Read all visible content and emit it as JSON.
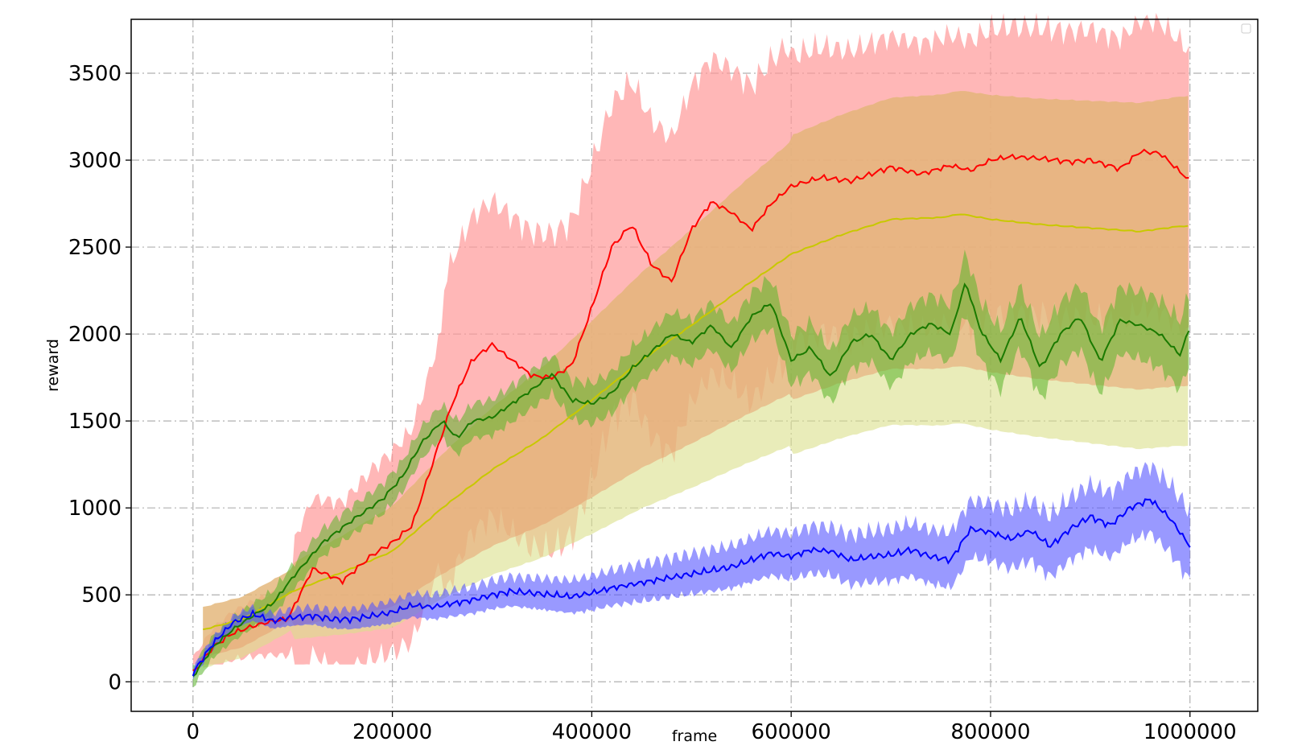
{
  "chart_data": {
    "type": "line",
    "xlabel": "frame",
    "ylabel": "reward",
    "xlim": [
      -62000,
      1068000
    ],
    "ylim": [
      -170,
      3810
    ],
    "xticks": [
      0,
      200000,
      400000,
      600000,
      800000,
      1000000
    ],
    "yticks": [
      0,
      500,
      1000,
      1500,
      2000,
      2500,
      3000,
      3500
    ],
    "grid": true,
    "legend": "top-right (empty)",
    "colors": {
      "red": "#ff0000",
      "yellow": "#c8c800",
      "green": "#1a7a00",
      "blue": "#0000ff",
      "red_band": "#ff9999",
      "yellow_band": "#dbe08a",
      "green_band": "#5ab52a",
      "blue_band": "#5555ff",
      "orange_overlap": "#e8a070",
      "olive_overlap": "#8a8a35"
    },
    "series": [
      {
        "color": "red",
        "x": [
          0,
          20000,
          40000,
          60000,
          80000,
          95000,
          120000,
          150000,
          180000,
          200000,
          220000,
          240000,
          260000,
          280000,
          300000,
          320000,
          340000,
          360000,
          380000,
          400000,
          420000,
          440000,
          460000,
          480000,
          500000,
          520000,
          540000,
          560000,
          580000,
          600000,
          630000,
          660000,
          700000,
          730000,
          760000,
          780000,
          800000,
          820000,
          850000,
          880000,
          900000,
          930000,
          950000,
          970000,
          1000000
        ],
        "y": [
          50,
          200,
          280,
          320,
          350,
          360,
          650,
          580,
          730,
          800,
          900,
          1250,
          1600,
          1850,
          1940,
          1850,
          1760,
          1750,
          1820,
          2150,
          2500,
          2630,
          2400,
          2300,
          2600,
          2760,
          2700,
          2600,
          2750,
          2850,
          2900,
          2880,
          2960,
          2920,
          2970,
          2940,
          3000,
          3020,
          3010,
          2990,
          3000,
          2950,
          3050,
          3040,
          2880
        ]
      },
      {
        "color": "yellow",
        "x": [
          10000,
          50000,
          100000,
          150000,
          200000,
          250000,
          300000,
          350000,
          400000,
          450000,
          500000,
          550000,
          600000,
          650000,
          700000,
          750000,
          770000,
          800000,
          850000,
          900000,
          950000,
          990000,
          1000000
        ],
        "y": [
          300,
          360,
          520,
          630,
          750,
          1000,
          1220,
          1400,
          1620,
          1850,
          2050,
          2260,
          2460,
          2570,
          2660,
          2670,
          2690,
          2660,
          2630,
          2610,
          2590,
          2620,
          2620
        ]
      },
      {
        "color": "green",
        "x": [
          0,
          20000,
          40000,
          60000,
          80000,
          100000,
          130000,
          160000,
          190000,
          210000,
          230000,
          250000,
          265000,
          280000,
          300000,
          320000,
          340000,
          360000,
          380000,
          400000,
          420000,
          440000,
          460000,
          480000,
          500000,
          520000,
          540000,
          560000,
          580000,
          600000,
          620000,
          640000,
          660000,
          680000,
          700000,
          720000,
          740000,
          760000,
          775000,
          790000,
          810000,
          830000,
          850000,
          870000,
          890000,
          910000,
          930000,
          950000,
          970000,
          990000,
          1000000
        ],
        "y": [
          30,
          200,
          300,
          380,
          450,
          600,
          800,
          930,
          1050,
          1180,
          1380,
          1500,
          1400,
          1500,
          1520,
          1600,
          1680,
          1770,
          1620,
          1600,
          1660,
          1800,
          1900,
          2000,
          1950,
          2050,
          1920,
          2100,
          2180,
          1850,
          1920,
          1750,
          1950,
          2000,
          1850,
          2000,
          2060,
          2000,
          2300,
          2020,
          1850,
          2100,
          1800,
          2000,
          2100,
          1840,
          2080,
          2050,
          2000,
          1880,
          2040
        ]
      },
      {
        "color": "blue",
        "x": [
          0,
          20000,
          40000,
          60000,
          80000,
          100000,
          120000,
          140000,
          160000,
          180000,
          200000,
          220000,
          240000,
          260000,
          280000,
          300000,
          320000,
          340000,
          360000,
          380000,
          400000,
          420000,
          440000,
          460000,
          480000,
          500000,
          520000,
          540000,
          560000,
          580000,
          600000,
          620000,
          640000,
          660000,
          680000,
          700000,
          720000,
          740000,
          760000,
          780000,
          800000,
          820000,
          840000,
          860000,
          880000,
          900000,
          920000,
          940000,
          960000,
          980000,
          1000000
        ],
        "y": [
          50,
          220,
          340,
          390,
          350,
          370,
          380,
          360,
          360,
          380,
          400,
          440,
          430,
          450,
          470,
          500,
          520,
          510,
          500,
          490,
          510,
          540,
          560,
          580,
          600,
          620,
          640,
          660,
          700,
          740,
          720,
          760,
          750,
          700,
          720,
          730,
          760,
          720,
          700,
          880,
          860,
          820,
          870,
          780,
          880,
          950,
          900,
          1000,
          1050,
          940,
          780
        ]
      }
    ]
  }
}
